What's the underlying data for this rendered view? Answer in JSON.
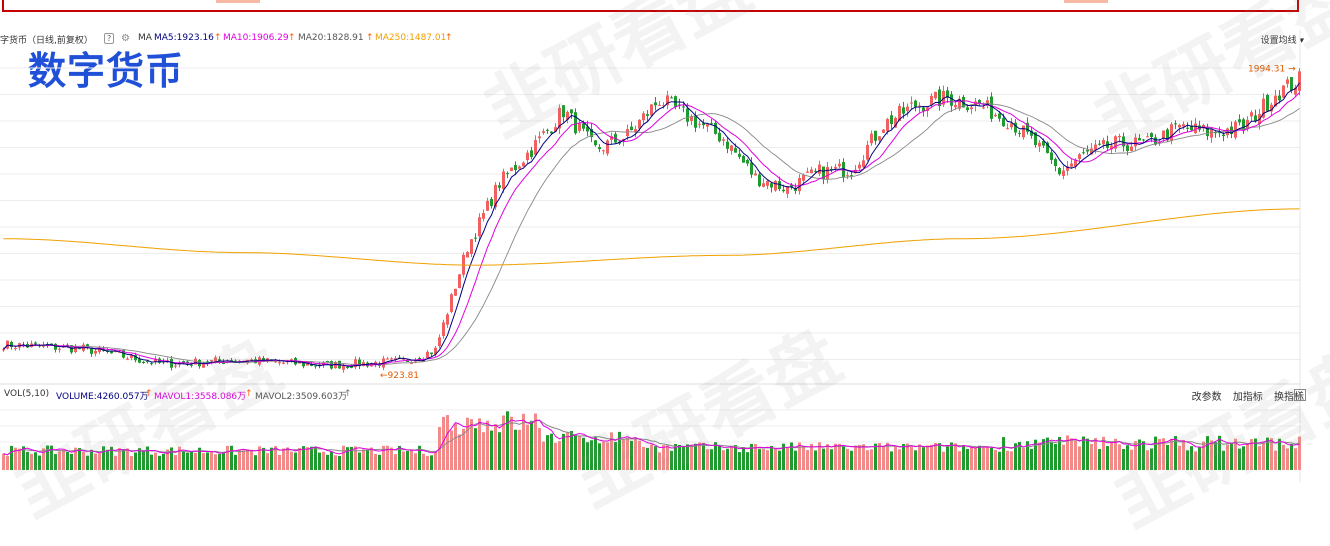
{
  "header": {
    "title_prefix": "字货币（日线,前复权）",
    "help": "?",
    "ma_label": "MA",
    "ma5": "MA5:1923.16",
    "ma10": "MA10:1906.29",
    "ma20": "MA20:1828.91",
    "ma250": "MA250:1487.01",
    "up_arrow": "↑",
    "ma_settings": "设置均线 ▾"
  },
  "big_title": "数字货币",
  "price_labels": {
    "high": "1994.31 →",
    "low": "←923.81"
  },
  "volume_header": {
    "vol_label": "VOL(5,10)",
    "volume": "VOLUME:4260.057万",
    "mavol1": "MAVOL1:3558.086万",
    "mavol2": "MAVOL2:3509.603万",
    "up_arrow": "↑"
  },
  "volume_tools": {
    "modify_params": "改参数",
    "add_indicator": "加指标",
    "switch_indicator": "换指标",
    "close": "X"
  },
  "watermark": "韭研看盘",
  "colors": {
    "up": "#f06060",
    "down": "#1f9a2f",
    "ma5": "#000080",
    "ma10": "#e000e0",
    "ma20": "#888888",
    "ma250": "#f0a000"
  },
  "chart_data": {
    "type": "candlestick",
    "title": "数字货币",
    "period": "日线,前复权",
    "visible_high": 1994.31,
    "visible_low": 923.81,
    "last_values": {
      "MA5": 1923.16,
      "MA10": 1906.29,
      "MA20": 1828.91,
      "MA250": 1487.01
    },
    "anchors": [
      {
        "index": 0,
        "close": 1000
      },
      {
        "index": 20,
        "close": 985
      },
      {
        "index": 40,
        "close": 930
      },
      {
        "index": 60,
        "close": 945
      },
      {
        "index": 80,
        "close": 925
      },
      {
        "index": 100,
        "close": 940
      },
      {
        "index": 108,
        "close": 980
      },
      {
        "index": 116,
        "close": 1350
      },
      {
        "index": 124,
        "close": 1580
      },
      {
        "index": 132,
        "close": 1700
      },
      {
        "index": 140,
        "close": 1840
      },
      {
        "index": 148,
        "close": 1700
      },
      {
        "index": 156,
        "close": 1750
      },
      {
        "index": 164,
        "close": 1880
      },
      {
        "index": 172,
        "close": 1810
      },
      {
        "index": 180,
        "close": 1740
      },
      {
        "index": 188,
        "close": 1600
      },
      {
        "index": 196,
        "close": 1560
      },
      {
        "index": 204,
        "close": 1620
      },
      {
        "index": 212,
        "close": 1630
      },
      {
        "index": 220,
        "close": 1790
      },
      {
        "index": 228,
        "close": 1860
      },
      {
        "index": 236,
        "close": 1885
      },
      {
        "index": 244,
        "close": 1860
      },
      {
        "index": 252,
        "close": 1800
      },
      {
        "index": 258,
        "close": 1720
      },
      {
        "index": 264,
        "close": 1620
      },
      {
        "index": 270,
        "close": 1680
      },
      {
        "index": 278,
        "close": 1720
      },
      {
        "index": 286,
        "close": 1720
      },
      {
        "index": 294,
        "close": 1780
      },
      {
        "index": 302,
        "close": 1760
      },
      {
        "index": 310,
        "close": 1780
      },
      {
        "index": 318,
        "close": 1900
      },
      {
        "index": 324,
        "close": 1950
      }
    ],
    "ma250_anchors": [
      {
        "index": 0,
        "value": 1380
      },
      {
        "index": 60,
        "value": 1330
      },
      {
        "index": 118,
        "value": 1285
      },
      {
        "index": 180,
        "value": 1320
      },
      {
        "index": 240,
        "value": 1380
      },
      {
        "index": 324,
        "value": 1487.01
      }
    ],
    "volume": {
      "last": 4260.057,
      "mavol1": 3558.086,
      "mavol2": 3509.603,
      "unit": "万"
    }
  }
}
